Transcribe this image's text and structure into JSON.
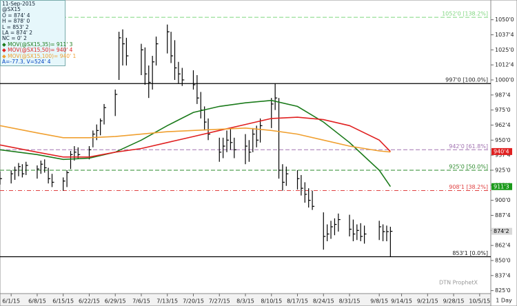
{
  "chart_data": {
    "type": "ohlc",
    "period": "1 Day",
    "watermark": "DTN ProphetX",
    "info": [
      "11-Sep-2015",
      "@SX15",
      "O = 874' 4",
      "H = 878' 0",
      "L = 853' 2",
      "LA = 874' 2",
      "NC = 0' 2"
    ],
    "footer_info": "A=-77.3, V=524' 4",
    "xlim": [
      "5/29/15",
      "10/8/15"
    ],
    "xticks": [
      "6/1/15",
      "6/8/15",
      "6/15/15",
      "6/22/15",
      "6/29/15",
      "7/6/15",
      "7/13/15",
      "7/20/15",
      "7/27/15",
      "8/3/15",
      "8/10/15",
      "8/17/15",
      "8/24/15",
      "8/31/15",
      "9/8/15",
      "9/14/15",
      "9/21/15",
      "9/28/15",
      "10/5/15"
    ],
    "ylim": [
      822.5,
      1066.4
    ],
    "yticks": [
      {
        "value": 1050,
        "label": "1050'0"
      },
      {
        "value": 1037.5,
        "label": "1037'4"
      },
      {
        "value": 1025,
        "label": "1025'0"
      },
      {
        "value": 1012.5,
        "label": "1012'4"
      },
      {
        "value": 1000,
        "label": "1000'0"
      },
      {
        "value": 987.5,
        "label": "987'4"
      },
      {
        "value": 975,
        "label": "975'0"
      },
      {
        "value": 962.5,
        "label": "962'4"
      },
      {
        "value": 950,
        "label": "950'0"
      },
      {
        "value": 937.5,
        "label": "937'4"
      },
      {
        "value": 925,
        "label": "925'0"
      },
      {
        "value": 912.5,
        "label": "912'4"
      },
      {
        "value": 900,
        "label": "900'0"
      },
      {
        "value": 887.5,
        "label": "887'4"
      },
      {
        "value": 875,
        "label": "875'0"
      },
      {
        "value": 862.5,
        "label": "862'4"
      },
      {
        "value": 850,
        "label": "850'0"
      },
      {
        "value": 837.5,
        "label": "837'4"
      },
      {
        "value": 825,
        "label": "825'0"
      }
    ],
    "bars": {
      "color": "#000000",
      "x": [
        "5/29/15",
        "6/1/15",
        "6/2/15",
        "6/3/15",
        "6/4/15",
        "6/5/15",
        "6/8/15",
        "6/9/15",
        "6/10/15",
        "6/11/15",
        "6/12/15",
        "6/15/15",
        "6/16/15",
        "6/17/15",
        "6/18/15",
        "6/19/15",
        "6/22/15",
        "6/23/15",
        "6/24/15",
        "6/25/15",
        "6/26/15",
        "6/29/15",
        "6/30/15",
        "7/1/15",
        "7/2/15",
        "7/6/15",
        "7/7/15",
        "7/8/15",
        "7/9/15",
        "7/10/15",
        "7/13/15",
        "7/14/15",
        "7/15/15",
        "7/16/15",
        "7/17/15",
        "7/20/15",
        "7/21/15",
        "7/22/15",
        "7/23/15",
        "7/24/15",
        "7/27/15",
        "7/28/15",
        "7/29/15",
        "7/30/15",
        "7/31/15",
        "8/3/15",
        "8/4/15",
        "8/5/15",
        "8/6/15",
        "8/7/15",
        "8/10/15",
        "8/11/15",
        "8/12/15",
        "8/13/15",
        "8/14/15",
        "8/17/15",
        "8/18/15",
        "8/19/15",
        "8/20/15",
        "8/21/15",
        "8/24/15",
        "8/25/15",
        "8/26/15",
        "8/27/15",
        "8/28/15",
        "8/31/15",
        "9/1/15",
        "9/2/15",
        "9/3/15",
        "9/4/15",
        "9/8/15",
        "9/9/15",
        "9/10/15",
        "9/11/15"
      ],
      "high": [
        924,
        925,
        928,
        931,
        930,
        932,
        929,
        933,
        934,
        927,
        922,
        919,
        925,
        941,
        945,
        944,
        945,
        958,
        963,
        968,
        980,
        992,
        1040,
        1042,
        1035,
        1030,
        1027,
        1012,
        1020,
        1036,
        1046,
        1040,
        1033,
        1015,
        1010,
        1008,
        1004,
        990,
        978,
        968,
        952,
        952,
        958,
        960,
        952,
        955,
        950,
        960,
        962,
        968,
        985,
        997,
        985,
        930,
        928,
        925,
        921,
        915,
        910,
        908,
        890,
        880,
        883,
        885,
        889,
        888,
        884,
        880,
        881,
        879,
        883,
        880,
        879,
        878
      ],
      "low": [
        913,
        914,
        917,
        920,
        919,
        921,
        918,
        922,
        923,
        914,
        911,
        908,
        911,
        926,
        933,
        935,
        934,
        944,
        950,
        954,
        963,
        970,
        1000,
        1012,
        1012,
        1004,
        996,
        985,
        992,
        1012,
        1022,
        1014,
        1000,
        997,
        995,
        992,
        980,
        968,
        958,
        950,
        932,
        935,
        940,
        942,
        935,
        930,
        932,
        940,
        944,
        948,
        960,
        975,
        918,
        908,
        912,
        909,
        904,
        898,
        894,
        892,
        859,
        866,
        868,
        871,
        874,
        870,
        866,
        867,
        866,
        864,
        867,
        866,
        866,
        853.25
      ],
      "close": [
        918,
        922,
        925,
        928,
        922,
        929,
        926,
        930,
        927,
        918,
        915,
        916,
        923,
        938,
        940,
        938,
        942,
        955,
        958,
        966,
        977,
        988,
        1035,
        1030,
        1020,
        1025,
        1005,
        998,
        1015,
        1030,
        1040,
        1020,
        1010,
        1005,
        1000,
        996,
        985,
        975,
        965,
        955,
        940,
        945,
        950,
        948,
        942,
        945,
        940,
        955,
        950,
        962,
        980,
        985,
        925,
        915,
        922,
        918,
        910,
        905,
        900,
        895,
        870,
        872,
        878,
        880,
        884,
        876,
        872,
        875,
        870,
        872,
        878,
        874,
        874,
        874.25
      ]
    },
    "lines": [
      {
        "name": "MOV(@SX15,35)= 911' 3",
        "color": "#1a7a1a",
        "x": [
          "5/29/15",
          "6/8/15",
          "6/15/15",
          "6/22/15",
          "6/29/15",
          "7/6/15",
          "7/13/15",
          "7/20/15",
          "7/27/15",
          "8/3/15",
          "8/10/15",
          "8/17/15",
          "8/24/15",
          "8/31/15",
          "9/8/15",
          "9/11/15"
        ],
        "values": [
          942,
          938,
          934,
          935,
          940,
          950,
          962,
          973,
          978,
          981,
          983,
          978,
          965,
          948,
          925,
          911.4
        ]
      },
      {
        "name": "MOV(@SX15,50)= 940' 4",
        "color": "#e02020",
        "x": [
          "5/29/15",
          "6/8/15",
          "6/15/15",
          "6/22/15",
          "6/29/15",
          "7/6/15",
          "7/13/15",
          "7/20/15",
          "7/27/15",
          "8/3/15",
          "8/10/15",
          "8/17/15",
          "8/24/15",
          "8/31/15",
          "9/8/15",
          "9/11/15"
        ],
        "values": [
          946,
          940,
          936,
          936,
          940,
          943,
          948,
          953,
          958,
          963,
          968,
          969,
          967,
          962,
          950,
          940.5
        ]
      },
      {
        "name": "MOV(@SX15,100)= 940' 1",
        "color": "#f0a030",
        "x": [
          "5/29/15",
          "6/8/15",
          "6/15/15",
          "6/22/15",
          "6/29/15",
          "7/6/15",
          "7/13/15",
          "7/20/15",
          "7/27/15",
          "8/3/15",
          "8/10/15",
          "8/17/15",
          "8/24/15",
          "8/31/15",
          "9/8/15",
          "9/11/15"
        ],
        "values": [
          962,
          956,
          952,
          952,
          953,
          955,
          957,
          958,
          959,
          960,
          958,
          955,
          950,
          945,
          941,
          940.1
        ]
      }
    ],
    "hlines": [
      {
        "value": 1052,
        "label": "1052'0 [138.2%]",
        "color": "#7fd67f",
        "style": "dashed"
      },
      {
        "value": 997,
        "label": "997'0 [100.0%]",
        "color": "#000000",
        "style": "solid"
      },
      {
        "value": 942,
        "label": "942'0 [61.8%]",
        "color": "#a070b0",
        "style": "dashed"
      },
      {
        "value": 925,
        "label": "925'0 [50.0%]",
        "color": "#2a8a2a",
        "style": "dashed"
      },
      {
        "value": 908.125,
        "label": "908'1 [38.2%]",
        "color": "#e04040",
        "style": "dashdot"
      },
      {
        "value": 853.125,
        "label": "853'1 [0.0%]",
        "color": "#000000",
        "style": "solid"
      }
    ],
    "axis_boxes": [
      {
        "value": 940.5,
        "label": "940'4",
        "color": "#e02020"
      },
      {
        "value": 911.375,
        "label": "911'3",
        "color": "#1a9a1a"
      },
      {
        "value": 874.25,
        "label": "874'2",
        "color": "#d8d8d8"
      }
    ]
  }
}
